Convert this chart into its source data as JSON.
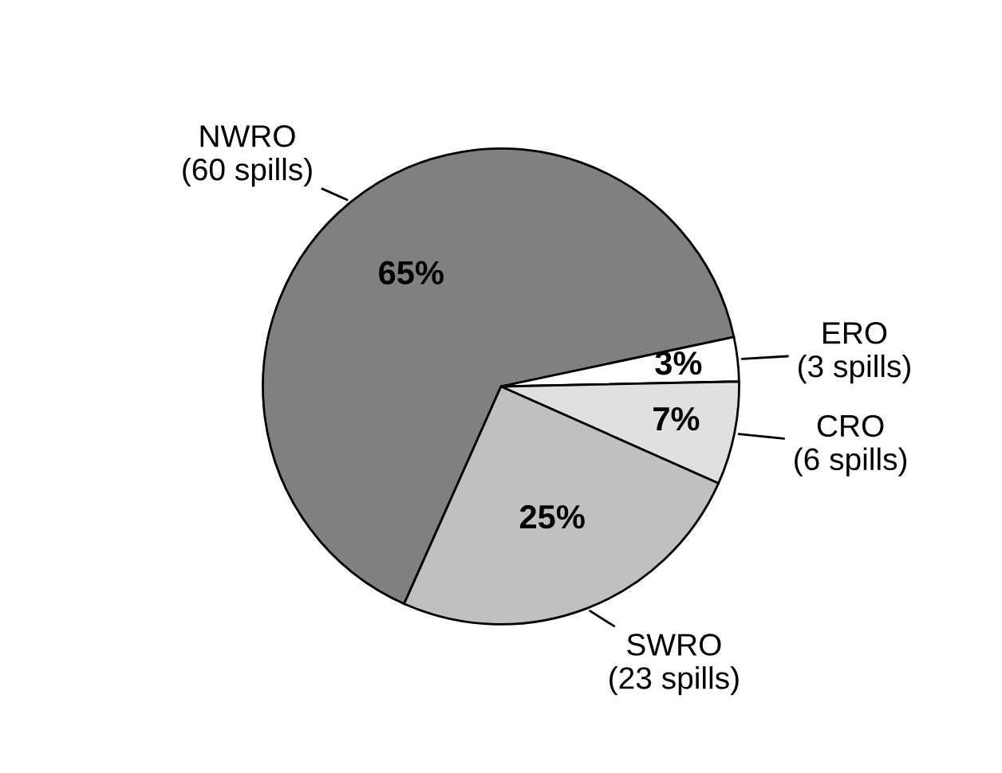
{
  "chart_data": {
    "type": "pie",
    "categories": [
      "NWRO\n(60 spills)",
      "ERO\n(3 spills)",
      "CRO\n(6 spills)",
      "SWRO\n(23 spills)"
    ],
    "values": [
      65,
      3,
      7,
      25
    ],
    "colors": [
      "#808080",
      "#ffffff",
      "#e0e0e0",
      "#c0c0c0"
    ],
    "value_labels": [
      "65%",
      "3%",
      "7%",
      "25%"
    ]
  }
}
